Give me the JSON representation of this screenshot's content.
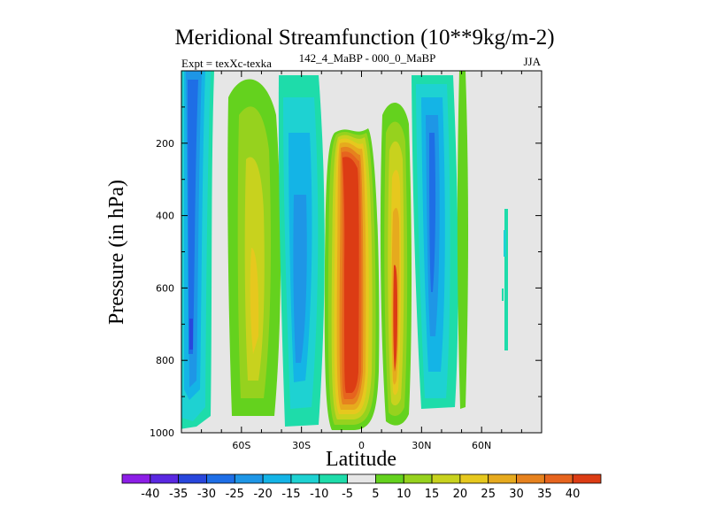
{
  "chart_data": {
    "type": "heatmap",
    "title": "Meridional Streamfunction (10**9kg/m-2)",
    "left_subtitle": "Expt = texXc-texka",
    "center_subtitle": "142_4_MaBP - 000_0_MaBP",
    "right_subtitle": "JJA",
    "xlabel": "Latitude",
    "ylabel": "Pressure (in hPa)",
    "xlim": [
      -90,
      90
    ],
    "ylim": [
      1000,
      0
    ],
    "x_ticks": [
      {
        "value": -60,
        "label": "60S"
      },
      {
        "value": -30,
        "label": "30S"
      },
      {
        "value": 0,
        "label": "0"
      },
      {
        "value": 30,
        "label": "30N"
      },
      {
        "value": 60,
        "label": "60N"
      }
    ],
    "y_ticks": [
      {
        "value": 200,
        "label": "200"
      },
      {
        "value": 400,
        "label": "400"
      },
      {
        "value": 600,
        "label": "600"
      },
      {
        "value": 800,
        "label": "800"
      },
      {
        "value": 1000,
        "label": "1000"
      }
    ],
    "colorbar": {
      "levels": [
        -40,
        -35,
        -30,
        -25,
        -20,
        -15,
        -10,
        -5,
        5,
        10,
        15,
        20,
        25,
        30,
        35,
        40
      ],
      "colors": [
        "#8c1ee6",
        "#5a28e1",
        "#2846dc",
        "#1e6ee6",
        "#1e96e6",
        "#14b4e6",
        "#1ed2d2",
        "#1edcaa",
        "#e6e6e6",
        "#64d21e",
        "#96d21e",
        "#c8d21e",
        "#e6c81e",
        "#e6aa1e",
        "#e6821e",
        "#e6641e",
        "#dc3c14"
      ],
      "tick_labels": [
        "-40",
        "-35",
        "-30",
        "-25",
        "-20",
        "-15",
        "-10",
        "-5",
        "5",
        "10",
        "15",
        "20",
        "25",
        "30",
        "35",
        "40"
      ]
    },
    "features": [
      {
        "name": "sh-negative-cell",
        "lat_range": [
          -82,
          -70
        ],
        "p_range": [
          20,
          970
        ],
        "min_value": -30
      },
      {
        "name": "sh-positive-cell",
        "lat_range": [
          -66,
          -50
        ],
        "p_range": [
          60,
          950
        ],
        "max_value": 17
      },
      {
        "name": "sh-midlat-negative-cell",
        "lat_range": [
          -45,
          -25
        ],
        "p_range": [
          40,
          960
        ],
        "min_value": -20
      },
      {
        "name": "equatorial-positive-cell",
        "lat_range": [
          -15,
          10
        ],
        "p_range": [
          140,
          990
        ],
        "max_value": 40
      },
      {
        "name": "nh-positive-cell",
        "lat_range": [
          12,
          27
        ],
        "p_range": [
          60,
          980
        ],
        "max_value": 30
      },
      {
        "name": "nh-negative-cell",
        "lat_range": [
          30,
          45
        ],
        "p_range": [
          20,
          950
        ],
        "min_value": -25
      },
      {
        "name": "nh-weak-positive",
        "lat_range": [
          47,
          53
        ],
        "p_range": [
          20,
          920
        ],
        "max_value": 7
      },
      {
        "name": "nh-high-lat-negative",
        "lat_range": [
          73,
          74
        ],
        "p_range": [
          380,
          760
        ],
        "min_value": -7
      }
    ]
  }
}
